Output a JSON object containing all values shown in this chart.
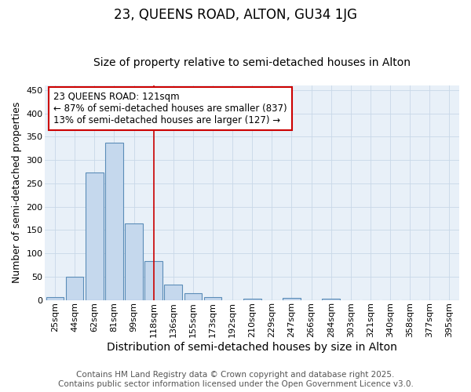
{
  "title": "23, QUEENS ROAD, ALTON, GU34 1JG",
  "subtitle": "Size of property relative to semi-detached houses in Alton",
  "xlabel": "Distribution of semi-detached houses by size in Alton",
  "ylabel": "Number of semi-detached properties",
  "categories": [
    "25sqm",
    "44sqm",
    "62sqm",
    "81sqm",
    "99sqm",
    "118sqm",
    "136sqm",
    "155sqm",
    "173sqm",
    "192sqm",
    "210sqm",
    "229sqm",
    "247sqm",
    "266sqm",
    "284sqm",
    "303sqm",
    "321sqm",
    "340sqm",
    "358sqm",
    "377sqm",
    "395sqm"
  ],
  "values": [
    6,
    50,
    273,
    337,
    164,
    84,
    33,
    14,
    6,
    0,
    3,
    0,
    4,
    0,
    3,
    0,
    0,
    0,
    0,
    0,
    0
  ],
  "bar_color": "#c5d8ed",
  "bar_edge_color": "#5b8db8",
  "vline_x_index": 5,
  "vline_color": "#cc0000",
  "annotation_line1": "23 QUEENS ROAD: 121sqm",
  "annotation_line2": "← 87% of semi-detached houses are smaller (837)",
  "annotation_line3": "13% of semi-detached houses are larger (127) →",
  "annotation_box_color": "white",
  "annotation_box_edge_color": "#cc0000",
  "ylim": [
    0,
    460
  ],
  "yticks": [
    0,
    50,
    100,
    150,
    200,
    250,
    300,
    350,
    400,
    450
  ],
  "footer_line1": "Contains HM Land Registry data © Crown copyright and database right 2025.",
  "footer_line2": "Contains public sector information licensed under the Open Government Licence v3.0.",
  "background_color": "#ffffff",
  "plot_bg_color": "#e8f0f8",
  "grid_color": "#c8d8e8",
  "title_fontsize": 12,
  "subtitle_fontsize": 10,
  "xlabel_fontsize": 10,
  "ylabel_fontsize": 9,
  "tick_fontsize": 8,
  "annotation_fontsize": 8.5,
  "footer_fontsize": 7.5
}
